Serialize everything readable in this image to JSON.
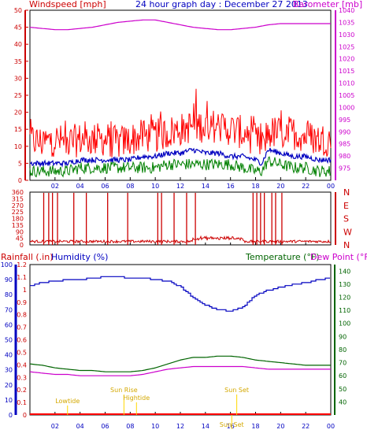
{
  "header": {
    "title": "24 hour graph day : December 27 2013",
    "left_label": "Windspeed [mph]",
    "right_label": "Barometer [mb]"
  },
  "lower_header": {
    "rainfall_label": "Rainfall (.in)",
    "humidity_label": "Humidity (%)",
    "temperature_label": "Temperature (°F)",
    "dewpoint_label": "Dew Point (°F)"
  },
  "colors": {
    "wind_gust": "#ff0000",
    "wind_avg": "#0000c0",
    "wind_low": "#008000",
    "barometer": "#cc00cc",
    "direction": "#cc0000",
    "humidity": "#0000c0",
    "temperature": "#006400",
    "dewpoint": "#cc00cc",
    "rain": "#ff0000",
    "events": "#ffd700",
    "frame": "#ffffff"
  },
  "chart_data": [
    {
      "type": "line",
      "title": "24 hour graph day : December 27 2013",
      "ylabel": "Windspeed [mph]",
      "y2label": "Barometer [mb]",
      "ylim": [
        0,
        50
      ],
      "y2lim": [
        970,
        1040
      ],
      "x_ticks": [
        "02",
        "04",
        "06",
        "08",
        "10",
        "12",
        "14",
        "16",
        "18",
        "20",
        "22",
        "00"
      ],
      "y_ticks": [
        0,
        5,
        10,
        15,
        20,
        25,
        30,
        35,
        40,
        45,
        50
      ],
      "y2_ticks": [
        975,
        980,
        985,
        990,
        995,
        1000,
        1005,
        1010,
        1015,
        1020,
        1025,
        1030,
        1035,
        1040
      ],
      "x": [
        0,
        1,
        2,
        3,
        4,
        5,
        6,
        7,
        8,
        9,
        10,
        11,
        12,
        13,
        14,
        15,
        16,
        17,
        18,
        18.5,
        19,
        20,
        21,
        22,
        23,
        24
      ],
      "series": [
        {
          "name": "gust",
          "values": [
            12,
            11,
            12,
            11,
            12,
            12,
            12,
            11,
            12,
            13,
            13,
            14,
            15,
            16,
            16,
            16,
            15,
            14,
            12,
            10,
            14,
            14,
            14,
            13,
            12,
            12
          ]
        },
        {
          "name": "average",
          "values": [
            5,
            5,
            5,
            5,
            6,
            6,
            6,
            6,
            6,
            7,
            7,
            8,
            8,
            9,
            8,
            8,
            7,
            7,
            6,
            5,
            9,
            8,
            7,
            7,
            6,
            6
          ]
        },
        {
          "name": "low",
          "values": [
            2,
            2,
            2,
            2,
            3,
            3,
            3,
            3,
            3,
            3,
            3,
            4,
            4,
            4,
            4,
            4,
            4,
            3,
            2,
            2,
            5,
            4,
            3,
            3,
            2,
            2
          ]
        },
        {
          "name": "barometer",
          "values": [
            1033,
            1032.5,
            1032,
            1032,
            1032.5,
            1033,
            1034,
            1035,
            1035.5,
            1036,
            1036,
            1035,
            1034,
            1033,
            1032.5,
            1032,
            1032,
            1032.5,
            1033,
            1033.5,
            1034,
            1034.5,
            1034.5,
            1034.5,
            1034.5,
            1034.5
          ]
        }
      ]
    },
    {
      "type": "line",
      "ylim": [
        0,
        360
      ],
      "y_ticks": [
        0,
        45,
        90,
        135,
        180,
        225,
        270,
        315,
        360
      ],
      "y2_ticks": [
        "N",
        "W",
        "S",
        "E",
        "N"
      ],
      "x_ticks": [
        "02",
        "04",
        "06",
        "08",
        "10",
        "12",
        "14",
        "16",
        "18",
        "20",
        "22",
        "00"
      ],
      "series": [
        {
          "name": "wind direction",
          "base": 20,
          "spikes_at_hours": [
            1.1,
            1.5,
            1.8,
            2.2,
            3.5,
            4.5,
            6.2,
            7.8,
            10.2,
            10.5,
            11.5,
            12.5,
            13.2,
            17.8,
            18.1,
            18.4,
            18.7,
            19.3,
            19.6,
            20.1
          ]
        }
      ]
    },
    {
      "type": "line",
      "y_left_rain_ticks": [
        0,
        0.1,
        0.2,
        0.3,
        0.4,
        0.5,
        0.6,
        0.7,
        0.8,
        0.9,
        1,
        1.1,
        1.2
      ],
      "y_left_humidity_ticks": [
        0,
        10,
        20,
        30,
        40,
        50,
        60,
        70,
        80,
        90,
        100
      ],
      "y_right_temp_ticks": [
        40,
        50,
        60,
        70,
        80,
        90,
        100,
        110,
        120,
        130,
        140
      ],
      "rain_ylim": [
        0,
        1.2
      ],
      "humidity_ylim": [
        0,
        100
      ],
      "temp_ylim": [
        30,
        145
      ],
      "x_ticks": [
        "02",
        "04",
        "06",
        "08",
        "10",
        "12",
        "14",
        "16",
        "18",
        "20",
        "22",
        "00"
      ],
      "x": [
        0,
        1,
        2,
        3,
        4,
        5,
        6,
        7,
        8,
        9,
        10,
        11,
        12,
        13,
        14,
        15,
        16,
        17,
        18,
        19,
        20,
        21,
        22,
        23,
        24
      ],
      "series": [
        {
          "name": "humidity",
          "values": [
            86,
            88,
            89,
            90,
            90,
            91,
            92,
            92,
            91,
            91,
            90,
            89,
            85,
            78,
            73,
            70,
            69,
            72,
            80,
            83,
            85,
            87,
            88,
            90,
            91
          ]
        },
        {
          "name": "temperature",
          "values": [
            69,
            68,
            66,
            65,
            64,
            64,
            63,
            63,
            63,
            64,
            66,
            69,
            72,
            74,
            74,
            75,
            75,
            74,
            72,
            71,
            70,
            69,
            68,
            68,
            68
          ]
        },
        {
          "name": "dew point",
          "values": [
            63,
            62,
            61,
            61,
            60,
            60,
            60,
            60,
            60,
            61,
            63,
            65,
            66,
            67,
            67,
            67,
            67,
            67,
            66,
            65,
            65,
            65,
            65,
            65,
            65
          ]
        },
        {
          "name": "rain",
          "values": [
            0,
            0,
            0,
            0,
            0,
            0,
            0,
            0,
            0,
            0,
            0,
            0,
            0,
            0,
            0,
            0,
            0,
            0,
            0,
            0,
            0,
            0,
            0,
            0,
            0
          ]
        }
      ],
      "annotations": [
        {
          "label": "Lowtide",
          "hour": 3.0
        },
        {
          "label": "Sun Rise",
          "hour": 7.5
        },
        {
          "label": "Hightide",
          "hour": 8.5
        },
        {
          "label": "Sun Set",
          "hour": 16.5
        },
        {
          "label": "Sun Set",
          "hour": 16.1
        }
      ]
    }
  ]
}
